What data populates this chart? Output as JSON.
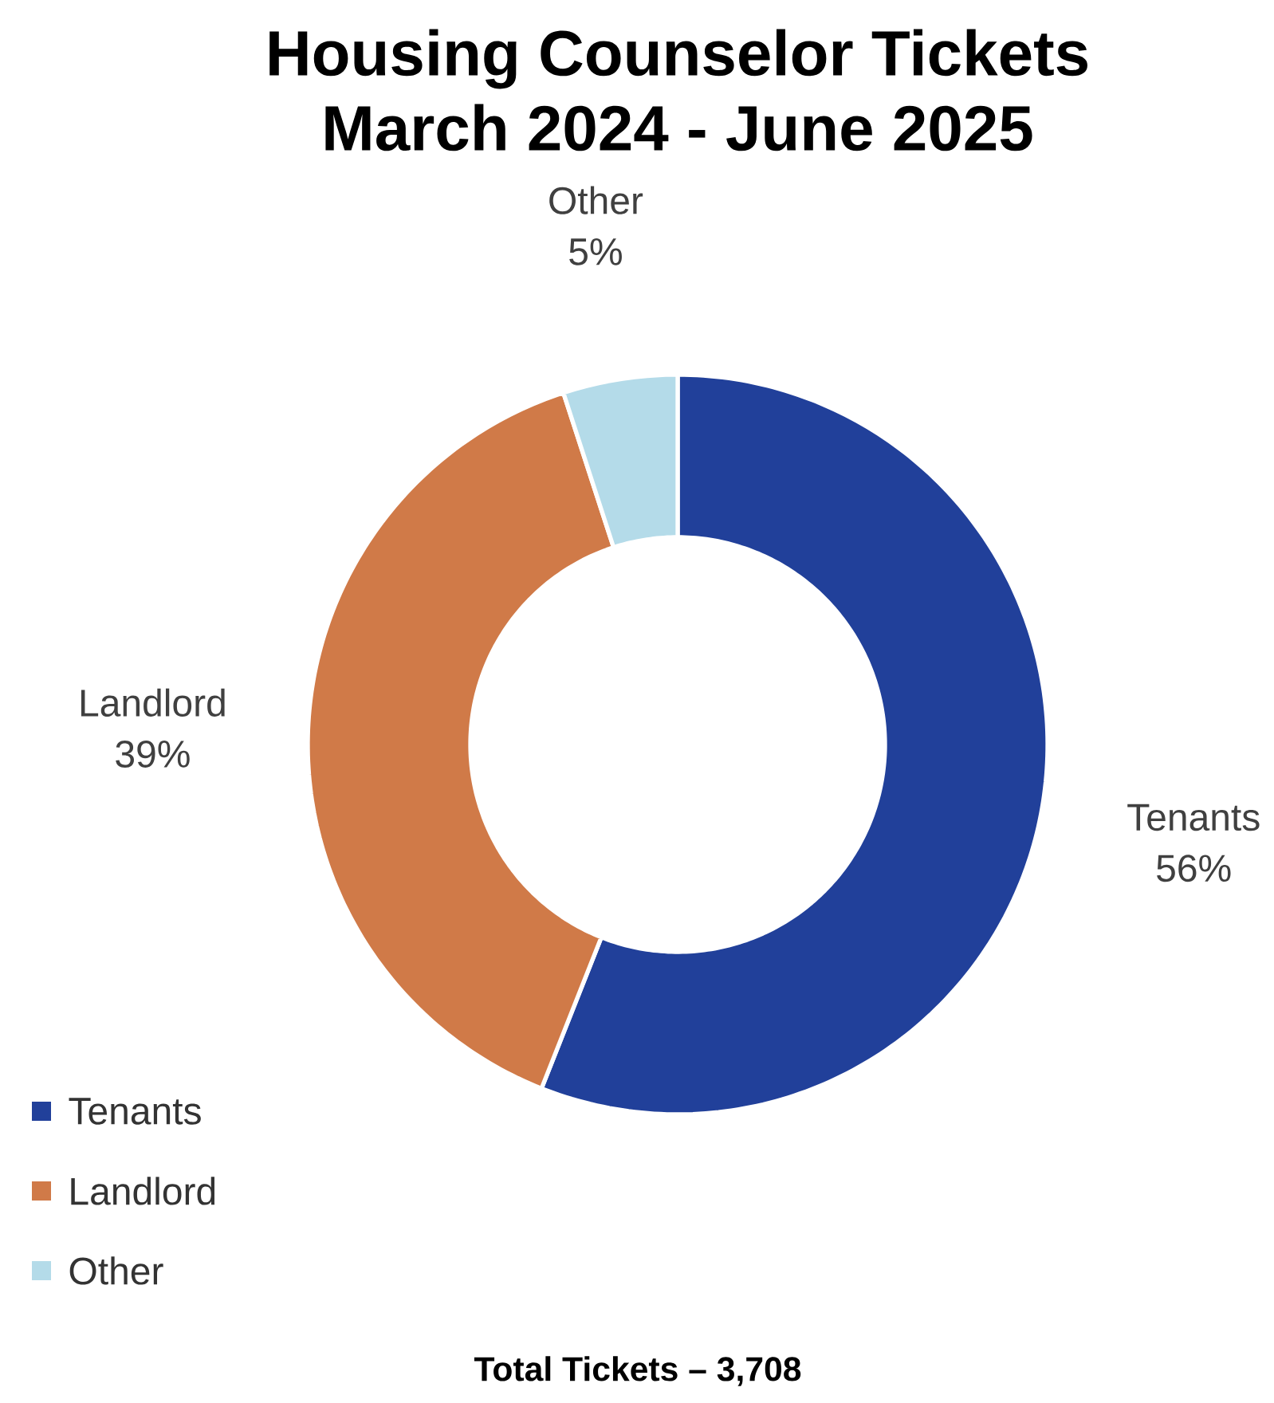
{
  "chart_data": {
    "type": "donut",
    "title": "Housing Counselor Tickets",
    "subtitle": "March 2024 - June 2025",
    "categories": [
      "Tenants",
      "Landlord",
      "Other"
    ],
    "values": [
      56,
      39,
      5
    ],
    "value_labels": [
      "56%",
      "39%",
      "5%"
    ],
    "colors": [
      "#21409a",
      "#d07a48",
      "#b4dbe9"
    ],
    "legend": "bottom left",
    "annotations": [
      "Total Tickets – 3,708"
    ]
  }
}
